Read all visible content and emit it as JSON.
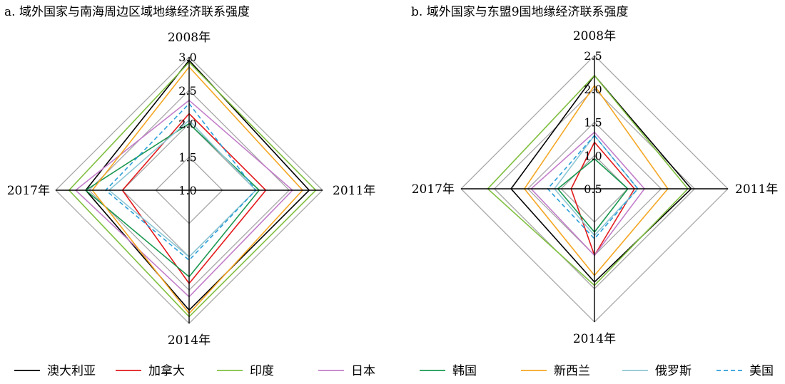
{
  "chart_data": [
    {
      "type": "radar",
      "title": "a. 域外国家与南海周边区域地缘经济联系强度",
      "axes": [
        "2008年",
        "2011年",
        "2014年",
        "2017年"
      ],
      "range": [
        1.0,
        3.0
      ],
      "ticks": [
        "1.0",
        "1.5",
        "2.0",
        "2.5",
        "3.0"
      ],
      "series": [
        {
          "name": "澳大利亚",
          "values": [
            2.95,
            2.8,
            2.8,
            2.55
          ]
        },
        {
          "name": "加拿大",
          "values": [
            2.15,
            2.15,
            2.4,
            2.0
          ]
        },
        {
          "name": "印度",
          "values": [
            2.92,
            2.9,
            2.9,
            2.8
          ]
        },
        {
          "name": "日本",
          "values": [
            2.35,
            2.55,
            2.6,
            2.7
          ]
        },
        {
          "name": "韩国",
          "values": [
            2.0,
            2.05,
            2.3,
            2.55
          ]
        },
        {
          "name": "新西兰",
          "values": [
            2.85,
            2.7,
            2.85,
            2.45
          ]
        },
        {
          "name": "俄罗斯",
          "values": [
            2.05,
            2.0,
            2.0,
            2.2
          ]
        },
        {
          "name": "美国",
          "values": [
            2.3,
            2.0,
            2.05,
            2.25
          ]
        }
      ]
    },
    {
      "type": "radar",
      "title": "b. 域外国家与东盟9国地缘经济联系强度",
      "axes": [
        "2008年",
        "2011年",
        "2014年",
        "2017年"
      ],
      "range": [
        0.5,
        2.5
      ],
      "ticks": [
        "0.5",
        "1.0",
        "1.5",
        "2.0",
        "2.5"
      ],
      "series": [
        {
          "name": "澳大利亚",
          "values": [
            2.2,
            1.95,
            1.9,
            1.75
          ]
        },
        {
          "name": "加拿大",
          "values": [
            1.2,
            1.1,
            1.5,
            0.85
          ]
        },
        {
          "name": "印度",
          "values": [
            2.2,
            1.9,
            1.95,
            2.1
          ]
        },
        {
          "name": "日本",
          "values": [
            1.35,
            1.25,
            1.5,
            1.45
          ]
        },
        {
          "name": "韩国",
          "values": [
            0.95,
            1.0,
            1.15,
            1.05
          ]
        },
        {
          "name": "新西兰",
          "values": [
            2.05,
            1.6,
            1.8,
            1.55
          ]
        },
        {
          "name": "俄罗斯",
          "values": [
            1.3,
            1.15,
            1.2,
            1.1
          ]
        },
        {
          "name": "美国",
          "values": [
            1.3,
            1.15,
            1.25,
            1.2
          ]
        }
      ]
    }
  ],
  "legend": [
    {
      "name": "澳大利亚",
      "color": "#000000",
      "dash": false
    },
    {
      "name": "加拿大",
      "color": "#e31a1c",
      "dash": false
    },
    {
      "name": "印度",
      "color": "#7fbf3f",
      "dash": false
    },
    {
      "name": "日本",
      "color": "#c27ec9",
      "dash": false
    },
    {
      "name": "韩国",
      "color": "#1a9850",
      "dash": false
    },
    {
      "name": "新西兰",
      "color": "#f5a623",
      "dash": false
    },
    {
      "name": "俄罗斯",
      "color": "#8ec6d4",
      "dash": false
    },
    {
      "name": "美国",
      "color": "#2b9fd9",
      "dash": true
    }
  ]
}
